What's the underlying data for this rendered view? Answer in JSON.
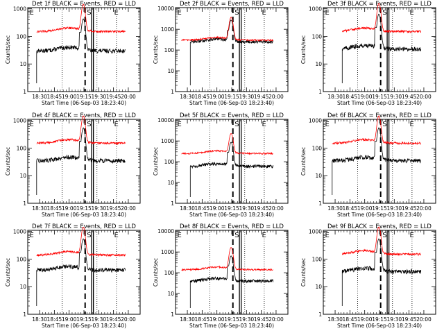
{
  "chart_data": [
    {
      "type": "line",
      "title": "Det 1f  BLACK = Events, RED = LLD",
      "ylabel": "Counts/sec",
      "xlabel": "Start Time (06-Sep-03 18:23:40)",
      "xticks": [
        "18:30",
        "18:45",
        "19:00",
        "19:15",
        "19:30",
        "19:45",
        "20:00"
      ],
      "yticks": [
        "1",
        "10",
        "100",
        "1000"
      ],
      "ylim": [
        1,
        1100
      ],
      "markers": [
        "E",
        "S",
        "E"
      ],
      "series": [
        {
          "name": "Events",
          "color": "#000000",
          "base": 30,
          "peak": 400,
          "start": 18.45
        },
        {
          "name": "LLD",
          "color": "#ff0000",
          "base": 150,
          "peak": 1300,
          "start": 18.45
        }
      ]
    },
    {
      "type": "line",
      "title": "Det 2f  BLACK = Events, RED = LLD",
      "ylabel": "Counts/sec",
      "xlabel": "Start Time (06-Sep-03 18:23:40)",
      "xticks": [
        "18:30",
        "18:45",
        "19:00",
        "19:15",
        "19:30",
        "19:45",
        "20:00"
      ],
      "yticks": [
        "1",
        "10",
        "100",
        "1000",
        "10000"
      ],
      "ylim": [
        1,
        11000
      ],
      "markers": [
        "E",
        "S",
        "E"
      ],
      "series": [
        {
          "name": "Events",
          "color": "#000000",
          "base": 250,
          "peak": 2500,
          "start": 18.55
        },
        {
          "name": "LLD",
          "color": "#ff0000",
          "base": 300,
          "peak": 3500,
          "start": 18.4
        }
      ]
    },
    {
      "type": "line",
      "title": "Det 3f  BLACK = Events, RED = LLD",
      "ylabel": "Counts/sec",
      "xlabel": "Start Time (06-Sep-03 18:23:40)",
      "xticks": [
        "18:30",
        "18:45",
        "19:00",
        "19:15",
        "19:30",
        "19:45",
        "20:00"
      ],
      "yticks": [
        "1",
        "10",
        "100",
        "1000"
      ],
      "ylim": [
        1,
        1100
      ],
      "markers": [
        "E",
        "S",
        "E"
      ],
      "series": [
        {
          "name": "Events",
          "color": "#000000",
          "base": 35,
          "peak": 600,
          "start": 18.62
        },
        {
          "name": "LLD",
          "color": "#ff0000",
          "base": 150,
          "peak": 1400,
          "start": 18.62
        }
      ]
    },
    {
      "type": "line",
      "title": "Det 4f  BLACK = Events, RED = LLD",
      "ylabel": "Counts/sec",
      "xlabel": "Start Time (06-Sep-03 18:23:40)",
      "xticks": [
        "18:30",
        "18:45",
        "19:00",
        "19:15",
        "19:30",
        "19:45",
        "20:00"
      ],
      "yticks": [
        "1",
        "10",
        "100",
        "1000"
      ],
      "ylim": [
        1,
        1100
      ],
      "markers": [
        "E",
        "S",
        "E"
      ],
      "series": [
        {
          "name": "Events",
          "color": "#000000",
          "base": 35,
          "peak": 500,
          "start": 18.45
        },
        {
          "name": "LLD",
          "color": "#ff0000",
          "base": 150,
          "peak": 1300,
          "start": 18.45
        }
      ]
    },
    {
      "type": "line",
      "title": "Det 5f  BLACK = Events, RED = LLD",
      "ylabel": "Counts/sec",
      "xlabel": "Start Time (06-Sep-03 18:23:40)",
      "xticks": [
        "18:30",
        "18:45",
        "19:00",
        "19:15",
        "19:30",
        "19:45",
        "20:00"
      ],
      "yticks": [
        "1",
        "10",
        "100",
        "1000",
        "10000"
      ],
      "ylim": [
        1,
        11000
      ],
      "markers": [
        "E",
        "S",
        "E"
      ],
      "series": [
        {
          "name": "Events",
          "color": "#000000",
          "base": 60,
          "peak": 800,
          "start": 18.55
        },
        {
          "name": "LLD",
          "color": "#ff0000",
          "base": 250,
          "peak": 2000,
          "start": 18.4
        }
      ]
    },
    {
      "type": "line",
      "title": "Det 6f  BLACK = Events, RED = LLD",
      "ylabel": "Counts/sec",
      "xlabel": "Start Time (06-Sep-03 18:23:40)",
      "xticks": [
        "18:30",
        "18:45",
        "19:00",
        "19:15",
        "19:30",
        "19:45",
        "20:00"
      ],
      "yticks": [
        "1",
        "10",
        "100",
        "1000"
      ],
      "ylim": [
        1,
        1100
      ],
      "markers": [
        "E",
        "S",
        "E"
      ],
      "series": [
        {
          "name": "Events",
          "color": "#000000",
          "base": 35,
          "peak": 500,
          "start": 18.45
        },
        {
          "name": "LLD",
          "color": "#ff0000",
          "base": 150,
          "peak": 1300,
          "start": 18.45
        }
      ]
    },
    {
      "type": "line",
      "title": "Det 7f  BLACK = Events, RED = LLD",
      "ylabel": "Counts/sec",
      "xlabel": "Start Time (06-Sep-03 18:23:40)",
      "xticks": [
        "18:30",
        "18:45",
        "19:00",
        "19:15",
        "19:30",
        "19:45",
        "20:00"
      ],
      "yticks": [
        "1",
        "10",
        "100",
        "1000"
      ],
      "ylim": [
        1,
        1100
      ],
      "markers": [
        "E",
        "S",
        "E"
      ],
      "series": [
        {
          "name": "Events",
          "color": "#000000",
          "base": 40,
          "peak": 500,
          "start": 18.45
        },
        {
          "name": "LLD",
          "color": "#ff0000",
          "base": 140,
          "peak": 1300,
          "start": 18.45
        }
      ]
    },
    {
      "type": "line",
      "title": "Det 8f  BLACK = Events, RED = LLD",
      "ylabel": "Counts/sec",
      "xlabel": "Start Time (06-Sep-03 18:23:40)",
      "xticks": [
        "18:30",
        "18:45",
        "19:00",
        "19:15",
        "19:30",
        "19:45",
        "20:00"
      ],
      "yticks": [
        "1",
        "10",
        "100",
        "1000",
        "10000"
      ],
      "ylim": [
        1,
        11000
      ],
      "markers": [
        "E",
        "S",
        "E"
      ],
      "series": [
        {
          "name": "Events",
          "color": "#000000",
          "base": 40,
          "peak": 600,
          "start": 18.55
        },
        {
          "name": "LLD",
          "color": "#ff0000",
          "base": 140,
          "peak": 1500,
          "start": 18.4
        }
      ]
    },
    {
      "type": "line",
      "title": "Det 9f  BLACK = Events, RED = LLD",
      "ylabel": "Counts/sec",
      "xlabel": "Start Time (06-Sep-03 18:23:40)",
      "xticks": [
        "18:30",
        "18:45",
        "19:00",
        "19:15",
        "19:30",
        "19:45",
        "20:00"
      ],
      "yticks": [
        "1",
        "10",
        "100",
        "1000"
      ],
      "ylim": [
        1,
        1100
      ],
      "markers": [
        "E",
        "S",
        "E"
      ],
      "series": [
        {
          "name": "Events",
          "color": "#000000",
          "base": 35,
          "peak": 500,
          "start": 18.62
        },
        {
          "name": "LLD",
          "color": "#ff0000",
          "base": 150,
          "peak": 1300,
          "start": 18.62
        }
      ]
    }
  ]
}
